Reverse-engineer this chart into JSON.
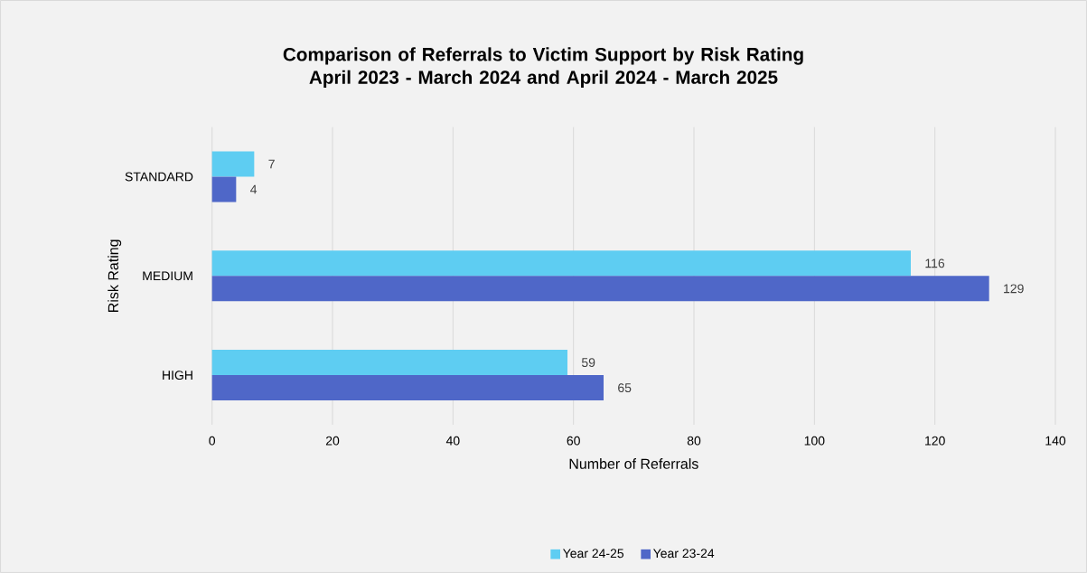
{
  "chart_data": {
    "type": "bar",
    "orientation": "horizontal",
    "title": "Comparison of Referrals to Victim Support by Risk Rating April 2023 - March 2024 and April 2024 - March 2025",
    "xlabel": "Number of Referrals",
    "ylabel": "Risk Rating",
    "categories": [
      "STANDARD",
      "MEDIUM",
      "HIGH"
    ],
    "series": [
      {
        "name": "Year 24-25",
        "color": "#5ecdf2",
        "values": [
          7,
          116,
          59
        ]
      },
      {
        "name": "Year 23-24",
        "color": "#4f67c8",
        "values": [
          4,
          129,
          65
        ]
      }
    ],
    "xlim": [
      0,
      140
    ],
    "xticks": [
      0,
      20,
      40,
      60,
      80,
      100,
      120,
      140
    ],
    "grid": "x",
    "legend": "bottom",
    "data_labels": true
  }
}
